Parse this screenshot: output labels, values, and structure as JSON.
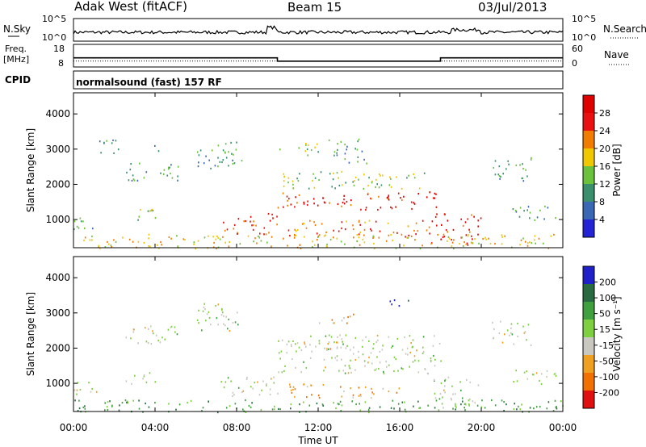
{
  "header": {
    "station": "Adak West (fitACF)",
    "beam": "Beam 15",
    "date": "03/Jul/2013"
  },
  "noise_panel": {
    "left_label": "N.Sky",
    "right_label": "N.Search",
    "left_ticks": [
      "10^5",
      "10^0"
    ],
    "right_ticks": [
      "10^5",
      "10^0"
    ]
  },
  "freq_panel": {
    "left_label_1": "Freq.",
    "left_label_2": "[MHz]",
    "right_label": "Nave",
    "left_ticks": [
      "18",
      "8"
    ],
    "right_ticks": [
      "60",
      "0"
    ],
    "freq_series_mhz": [
      {
        "t_start": "00:00",
        "t_end": "10:00",
        "value": 11.5
      },
      {
        "t_start": "10:00",
        "t_end": "18:00",
        "value": 9.2
      },
      {
        "t_start": "18:00",
        "t_end": "24:00",
        "value": 11.5
      }
    ],
    "nave_level": 20
  },
  "cpid": {
    "label": "CPID",
    "program": "normalsound (fast) 157 RF"
  },
  "colors": {
    "power_scale": [
      "#2424d4",
      "#3a68b4",
      "#3c8f6c",
      "#6cc23c",
      "#f0c800",
      "#f07d00",
      "#e81010",
      "#e00000"
    ],
    "velocity_scale": [
      "#2020c8",
      "#2a6a40",
      "#40a040",
      "#7ed040",
      "#c8c8c0",
      "#f0a020",
      "#f07000",
      "#e01010"
    ],
    "line": "#000000"
  },
  "chart_data": [
    {
      "type": "heatmap",
      "name": "power",
      "ylabel": "Slant Range [km]",
      "yticks": [
        "1000",
        "2000",
        "3000",
        "4000"
      ],
      "ylim": [
        200,
        4600
      ],
      "xlim_hours": [
        0,
        24
      ],
      "colorbar_label": "Power [dB]",
      "colorbar_ticks": [
        "4",
        "8",
        "12",
        "16",
        "20",
        "24",
        "28"
      ],
      "scatter_regions": [
        {
          "t0": 0.0,
          "t1": 1.3,
          "r0": 700,
          "r1": 1100,
          "level": 0.35
        },
        {
          "t0": 1.2,
          "t1": 2.4,
          "r0": 2900,
          "r1": 3400,
          "level": 0.25
        },
        {
          "t0": 2.5,
          "t1": 5.2,
          "r0": 2100,
          "r1": 2650,
          "level": 0.35
        },
        {
          "t0": 2.5,
          "t1": 4.0,
          "r0": 1000,
          "r1": 1350,
          "level": 0.45
        },
        {
          "t0": 3.8,
          "t1": 4.3,
          "r0": 2900,
          "r1": 3150,
          "level": 0.3
        },
        {
          "t0": 6.0,
          "t1": 8.3,
          "r0": 2450,
          "r1": 3300,
          "level": 0.3
        },
        {
          "t0": 7.2,
          "t1": 10.0,
          "r0": 600,
          "r1": 1200,
          "level": 0.78
        },
        {
          "t0": 10.0,
          "t1": 18.0,
          "r0": 1300,
          "r1": 1800,
          "level": 0.85
        },
        {
          "t0": 10.0,
          "t1": 17.5,
          "r0": 1900,
          "r1": 2400,
          "level": 0.45
        },
        {
          "t0": 10.0,
          "t1": 12.0,
          "r0": 2850,
          "r1": 3200,
          "level": 0.45
        },
        {
          "t0": 10.5,
          "t1": 17.5,
          "r0": 500,
          "r1": 1000,
          "level": 0.7
        },
        {
          "t0": 12.5,
          "t1": 14.5,
          "r0": 2600,
          "r1": 3300,
          "level": 0.3
        },
        {
          "t0": 17.5,
          "t1": 20.0,
          "r0": 300,
          "r1": 1200,
          "level": 0.85
        },
        {
          "t0": 20.5,
          "t1": 22.5,
          "r0": 2100,
          "r1": 2800,
          "level": 0.35
        },
        {
          "t0": 21.5,
          "t1": 24.0,
          "r0": 1000,
          "r1": 1400,
          "level": 0.3
        },
        {
          "t0": 0.0,
          "t1": 24.0,
          "r0": 200,
          "r1": 600,
          "level": 0.55
        }
      ]
    },
    {
      "type": "heatmap",
      "name": "velocity",
      "ylabel": "Slant Range [km]",
      "yticks": [
        "1000",
        "2000",
        "3000",
        "4000"
      ],
      "ylim": [
        200,
        4600
      ],
      "xlabel": "Time UT",
      "xticks": [
        "00:00",
        "04:00",
        "08:00",
        "12:00",
        "16:00",
        "20:00",
        "00:00"
      ],
      "xlim_hours": [
        0,
        24
      ],
      "colorbar_label": "Velocity [m s⁻¹]",
      "colorbar_ticks": [
        "200",
        "100",
        "50",
        "15",
        "-15",
        "-50",
        "-100",
        "-200"
      ],
      "scatter_regions": [
        {
          "t0": 0.0,
          "t1": 1.3,
          "r0": 700,
          "r1": 1100,
          "level": 0.55
        },
        {
          "t0": 2.5,
          "t1": 5.2,
          "r0": 2100,
          "r1": 2650,
          "level": 0.5
        },
        {
          "t0": 2.5,
          "t1": 4.0,
          "r0": 1000,
          "r1": 1350,
          "level": 0.5
        },
        {
          "t0": 6.0,
          "t1": 8.3,
          "r0": 2450,
          "r1": 3300,
          "level": 0.5
        },
        {
          "t0": 7.2,
          "t1": 10.0,
          "r0": 600,
          "r1": 1200,
          "level": 0.5
        },
        {
          "t0": 10.0,
          "t1": 18.0,
          "r0": 1300,
          "r1": 2400,
          "level": 0.5
        },
        {
          "t0": 10.5,
          "t1": 16.0,
          "r0": 600,
          "r1": 1000,
          "level": 0.72
        },
        {
          "t0": 10.5,
          "t1": 13.0,
          "r0": 1900,
          "r1": 2200,
          "level": 0.68
        },
        {
          "t0": 12.0,
          "t1": 14.0,
          "r0": 2700,
          "r1": 3000,
          "level": 0.7
        },
        {
          "t0": 15.5,
          "t1": 16.5,
          "r0": 3100,
          "r1": 3400,
          "level": 0.05
        },
        {
          "t0": 17.5,
          "t1": 20.0,
          "r0": 300,
          "r1": 1200,
          "level": 0.5
        },
        {
          "t0": 20.5,
          "t1": 22.5,
          "r0": 2100,
          "r1": 2800,
          "level": 0.5
        },
        {
          "t0": 21.5,
          "t1": 24.0,
          "r0": 1000,
          "r1": 1400,
          "level": 0.5
        },
        {
          "t0": 0.0,
          "t1": 24.0,
          "r0": 200,
          "r1": 550,
          "level": 0.3
        }
      ]
    }
  ]
}
